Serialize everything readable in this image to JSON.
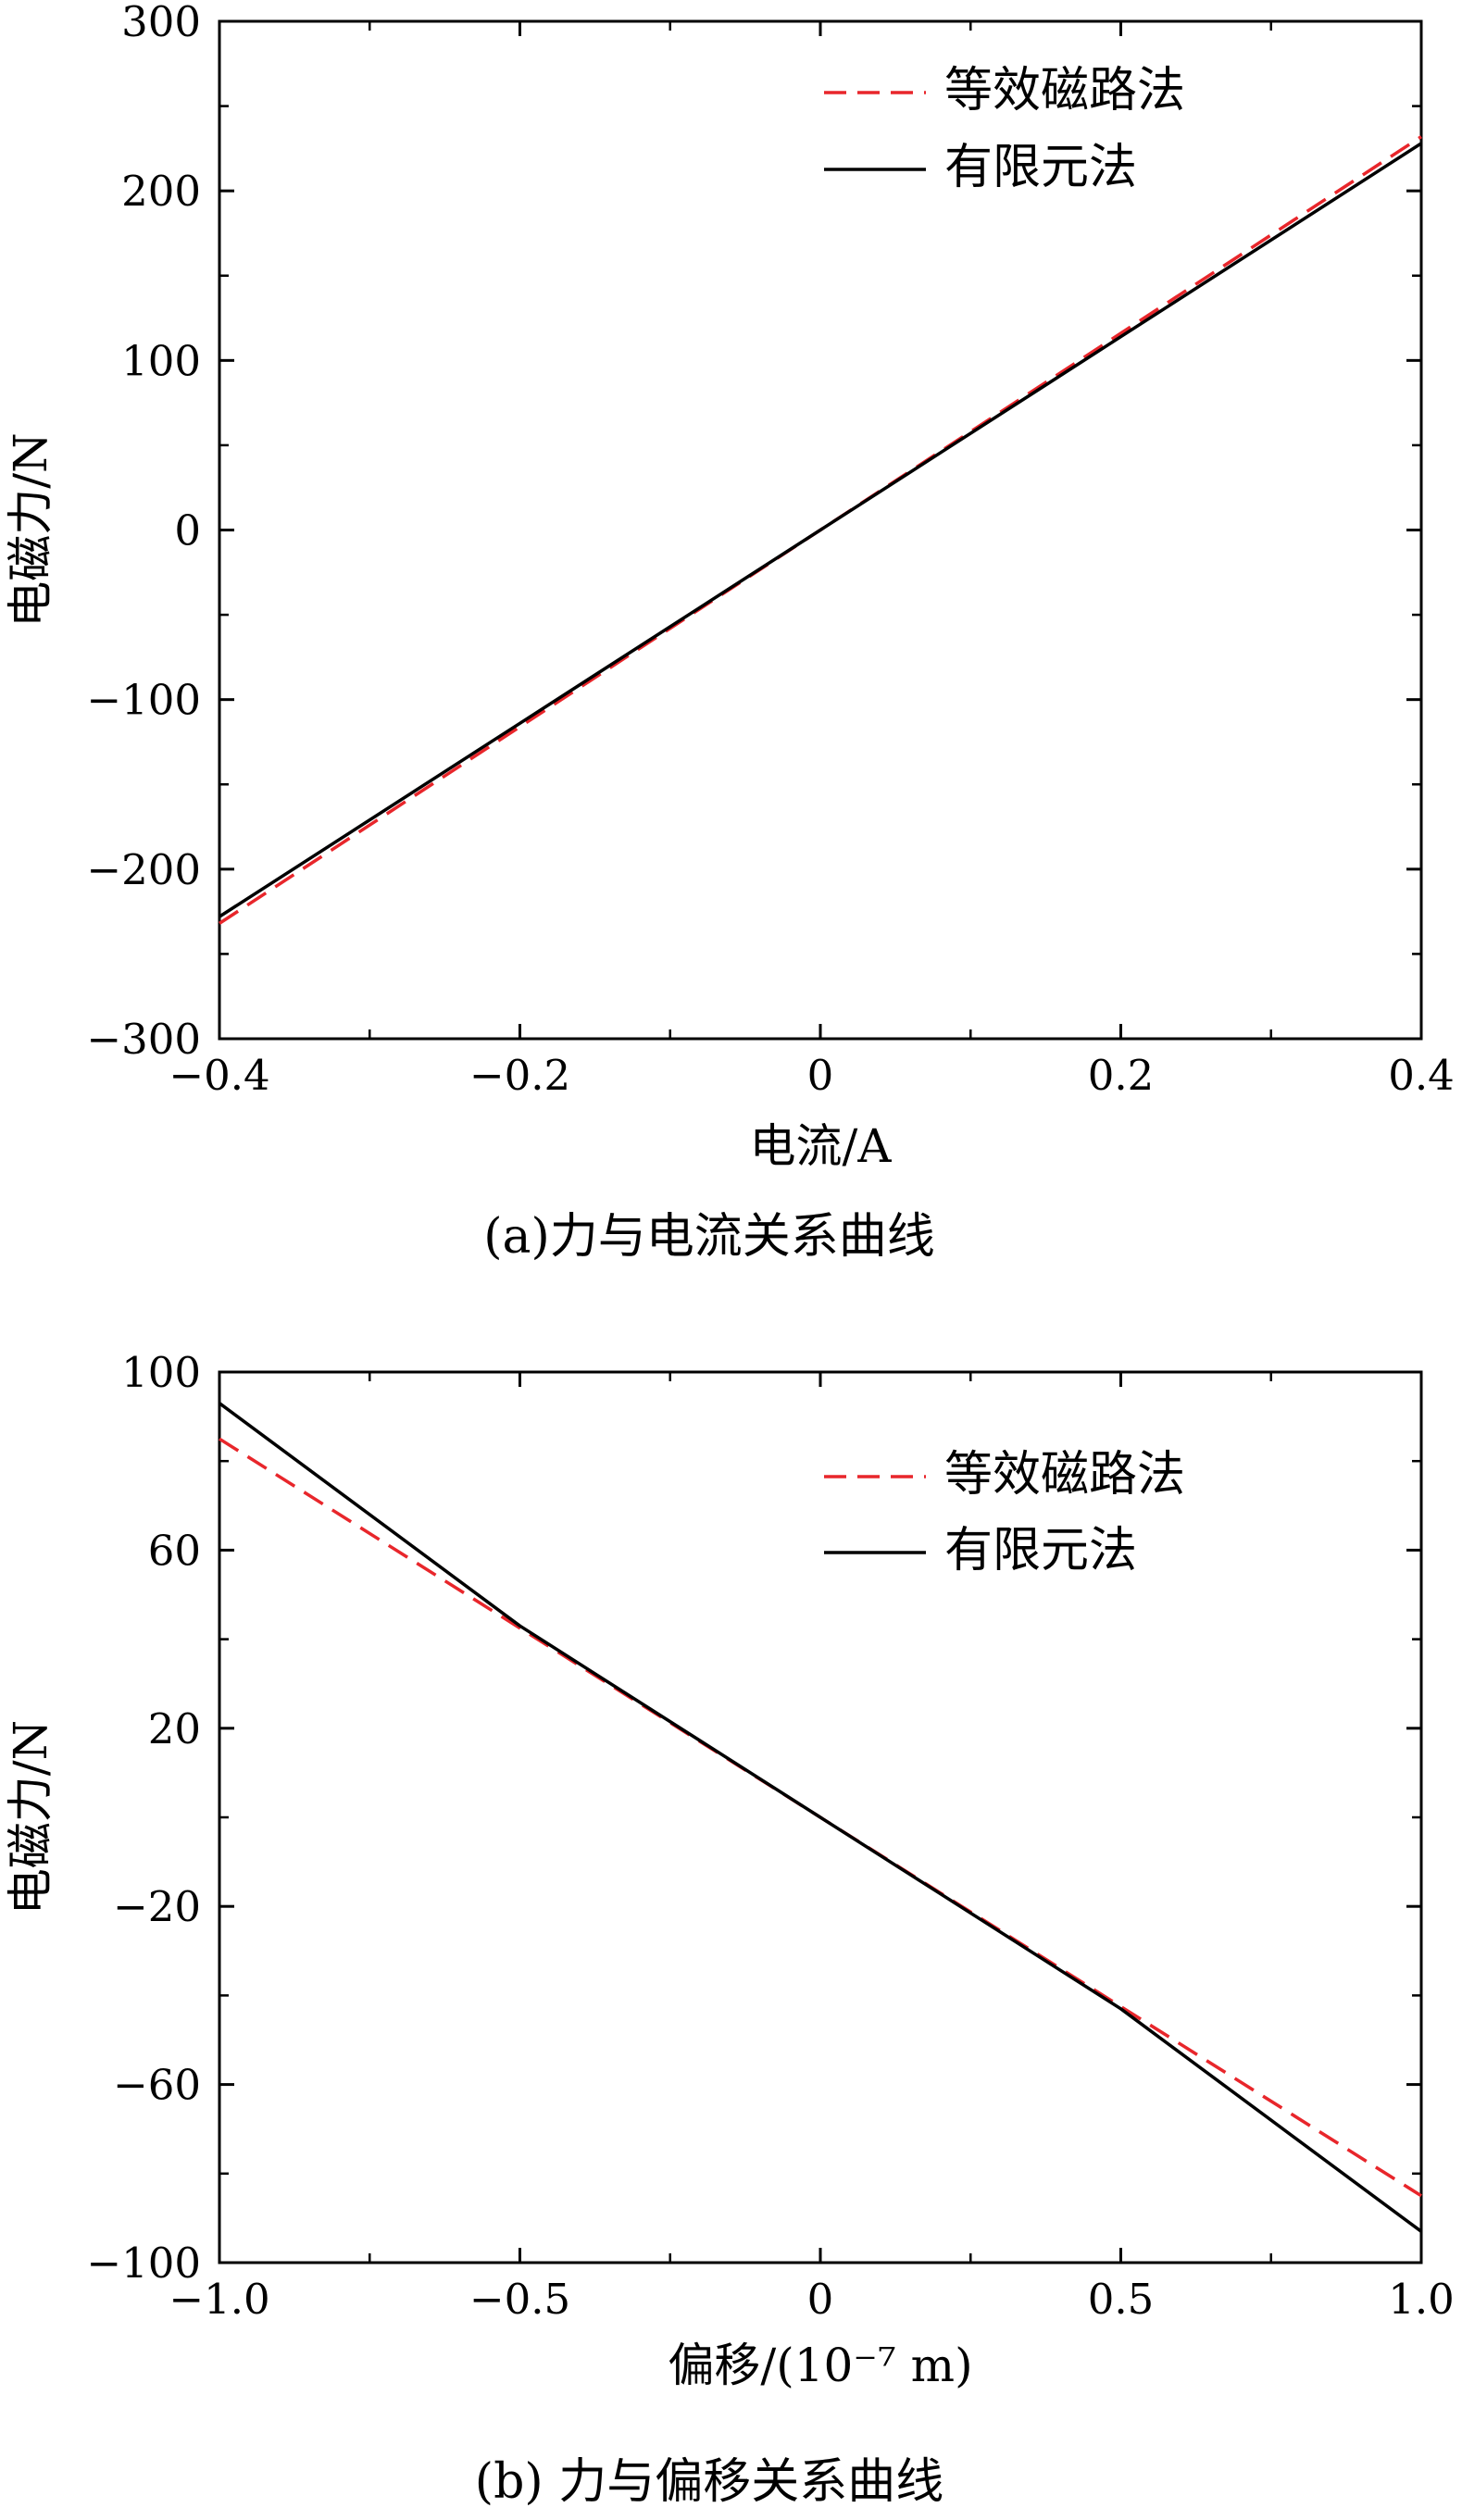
{
  "chart_data": [
    {
      "type": "line",
      "caption": "(a)力与电流关系曲线",
      "xlabel": "电流/A",
      "ylabel": "电磁力/N",
      "xlim": [
        -0.4,
        0.4
      ],
      "ylim": [
        -300,
        300
      ],
      "x_ticks": [
        -0.4,
        -0.2,
        0,
        0.2,
        0.4
      ],
      "x_tick_labels": [
        "−0.4",
        "−0.2",
        "0",
        "0.2",
        "0.4"
      ],
      "y_ticks": [
        -300,
        -200,
        -100,
        0,
        100,
        200,
        300
      ],
      "y_tick_labels": [
        "−300",
        "−200",
        "−100",
        "0",
        "100",
        "200",
        "300"
      ],
      "grid": false,
      "legend_position": "top-right",
      "series": [
        {
          "name": "等效磁路法",
          "color": "#e8262b",
          "dash": "dashed",
          "x": [
            -0.4,
            -0.2,
            0,
            0.2,
            0.4
          ],
          "y": [
            -232,
            -116,
            0,
            116,
            232
          ]
        },
        {
          "name": "有限元法",
          "color": "#000000",
          "dash": "solid",
          "x": [
            -0.4,
            -0.2,
            0,
            0.2,
            0.4
          ],
          "y": [
            -228,
            -114,
            0,
            114,
            228
          ]
        }
      ]
    },
    {
      "type": "line",
      "caption": "(b) 力与偏移关系曲线",
      "xlabel": "偏移/(10⁻⁷ m)",
      "ylabel": "电磁力/N",
      "xlim": [
        -1.0,
        1.0
      ],
      "ylim": [
        -100,
        100
      ],
      "x_ticks": [
        -1.0,
        -0.5,
        0,
        0.5,
        1.0
      ],
      "x_tick_labels": [
        "−1.0",
        "−0.5",
        "0",
        "0.5",
        "1.0"
      ],
      "y_ticks": [
        -100,
        -60,
        -20,
        20,
        60,
        100
      ],
      "y_tick_labels": [
        "−100",
        "−60",
        "−20",
        "20",
        "60",
        "100"
      ],
      "grid": false,
      "legend_position": "top-right",
      "series": [
        {
          "name": "等效磁路法",
          "color": "#e8262b",
          "dash": "dashed",
          "x": [
            -1.0,
            -0.5,
            0,
            0.5,
            1.0
          ],
          "y": [
            85,
            42.5,
            0,
            -42.5,
            -85
          ]
        },
        {
          "name": "有限元法",
          "color": "#000000",
          "dash": "solid",
          "x": [
            -1.0,
            -0.5,
            0,
            0.5,
            1.0
          ],
          "y": [
            93,
            43,
            0,
            -43,
            -93
          ]
        }
      ]
    }
  ]
}
